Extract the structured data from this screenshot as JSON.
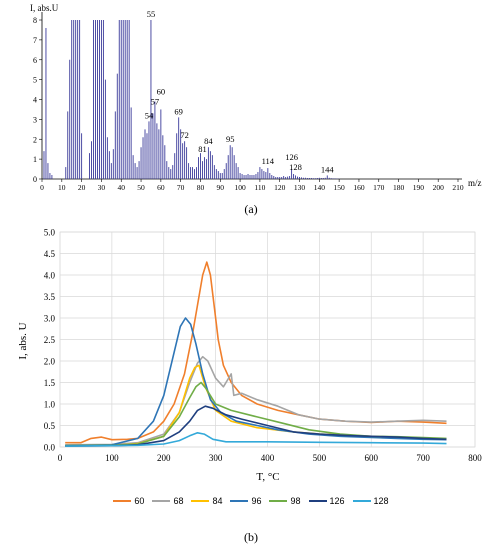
{
  "chart_data": [
    {
      "id": "a",
      "type": "bar",
      "caption": "(a)",
      "ylabel": "I, abs.U",
      "xlabel": "m/z",
      "ylim": [
        0,
        8
      ],
      "xlim": [
        0,
        210
      ],
      "yticks": [
        0,
        1,
        2,
        3,
        4,
        5,
        6,
        7,
        8
      ],
      "xticks": [
        0,
        10,
        20,
        30,
        40,
        50,
        60,
        70,
        80,
        90,
        100,
        110,
        120,
        130,
        140,
        150,
        160,
        170,
        180,
        190,
        200,
        210
      ],
      "color": "#3a3a9a",
      "x": [
        1,
        2,
        3,
        4,
        5,
        12,
        13,
        14,
        15,
        16,
        17,
        18,
        19,
        20,
        24,
        25,
        26,
        27,
        28,
        29,
        30,
        31,
        32,
        33,
        34,
        35,
        36,
        37,
        38,
        39,
        40,
        41,
        42,
        43,
        44,
        45,
        46,
        47,
        48,
        49,
        50,
        51,
        52,
        53,
        54,
        55,
        56,
        57,
        58,
        59,
        60,
        61,
        62,
        63,
        64,
        65,
        66,
        67,
        68,
        69,
        70,
        71,
        72,
        73,
        74,
        75,
        76,
        77,
        78,
        79,
        80,
        81,
        82,
        83,
        84,
        85,
        86,
        87,
        88,
        89,
        90,
        91,
        92,
        93,
        94,
        95,
        96,
        97,
        98,
        99,
        100,
        101,
        102,
        103,
        104,
        105,
        106,
        107,
        108,
        109,
        110,
        111,
        112,
        113,
        114,
        115,
        116,
        117,
        118,
        119,
        120,
        121,
        122,
        123,
        124,
        125,
        126,
        127,
        128,
        129,
        130,
        131,
        132,
        133,
        134,
        135,
        136,
        137,
        138,
        139,
        140,
        141,
        142,
        143,
        144,
        145,
        146,
        147,
        148,
        149,
        150
      ],
      "values": [
        1.4,
        7.6,
        0.8,
        0.3,
        0.2,
        0.6,
        3.4,
        6.0,
        8.0,
        8.0,
        8.0,
        8.0,
        8.0,
        2.3,
        1.3,
        1.9,
        8.0,
        8.0,
        8.0,
        8.0,
        8.0,
        8.0,
        5.0,
        2.1,
        1.4,
        0.8,
        1.5,
        3.4,
        5.3,
        8.0,
        8.0,
        8.0,
        8.0,
        8.0,
        8.0,
        3.6,
        1.2,
        0.8,
        0.6,
        0.9,
        1.6,
        2.1,
        2.5,
        2.3,
        2.9,
        8.0,
        3.3,
        3.9,
        2.8,
        2.5,
        3.5,
        2.2,
        1.7,
        0.9,
        0.6,
        0.5,
        0.7,
        1.3,
        2.3,
        3.1,
        2.5,
        1.8,
        1.9,
        1.6,
        0.8,
        0.6,
        0.6,
        0.5,
        0.6,
        1.1,
        1.3,
        0.9,
        1.1,
        1.0,
        1.6,
        1.4,
        1.2,
        0.7,
        0.5,
        0.4,
        0.3,
        0.3,
        0.5,
        0.8,
        1.2,
        1.7,
        1.6,
        1.2,
        0.8,
        0.6,
        0.3,
        0.25,
        0.2,
        0.2,
        0.25,
        0.2,
        0.2,
        0.2,
        0.25,
        0.35,
        0.6,
        0.5,
        0.4,
        0.35,
        0.55,
        0.3,
        0.2,
        0.15,
        0.1,
        0.1,
        0.1,
        0.1,
        0.15,
        0.1,
        0.12,
        0.15,
        0.5,
        0.25,
        0.18,
        0.12,
        0.1,
        0.08,
        0.06,
        0.06,
        0.05,
        0.05,
        0.05,
        0.04,
        0.04,
        0.05,
        0.06,
        0.05,
        0.05,
        0.06,
        0.18,
        0.06,
        0.04,
        0.03,
        0.03,
        0.02,
        0.02
      ],
      "annotations": [
        {
          "x": 55,
          "y": 8.0,
          "text": "55"
        },
        {
          "x": 54,
          "y": 2.9,
          "text": "54"
        },
        {
          "x": 57,
          "y": 3.6,
          "text": "57"
        },
        {
          "x": 60,
          "y": 4.1,
          "text": "60"
        },
        {
          "x": 69,
          "y": 3.1,
          "text": "69"
        },
        {
          "x": 72,
          "y": 1.9,
          "text": "72"
        },
        {
          "x": 81,
          "y": 1.2,
          "text": "81"
        },
        {
          "x": 84,
          "y": 1.6,
          "text": "84"
        },
        {
          "x": 95,
          "y": 1.7,
          "text": "95"
        },
        {
          "x": 114,
          "y": 0.6,
          "text": "114"
        },
        {
          "x": 126,
          "y": 0.8,
          "text": "126"
        },
        {
          "x": 128,
          "y": 0.3,
          "text": "128"
        },
        {
          "x": 144,
          "y": 0.18,
          "text": "144"
        }
      ]
    },
    {
      "id": "b",
      "type": "line",
      "caption": "(b)",
      "xlabel": "T, °C",
      "ylabel": "I, abs. U",
      "xlim": [
        0,
        800
      ],
      "ylim": [
        0,
        5
      ],
      "xticks": [
        0,
        100,
        200,
        300,
        400,
        500,
        600,
        700,
        800
      ],
      "yticks": [
        "0.0",
        "0.5",
        "1.0",
        "1.5",
        "2.0",
        "2.5",
        "3.0",
        "3.5",
        "4.0",
        "4.5",
        "5.0"
      ],
      "grid": true,
      "legend_position": "bottom",
      "series": [
        {
          "name": "60",
          "color": "#f07f2c",
          "points": [
            [
              10,
              0.1
            ],
            [
              40,
              0.1
            ],
            [
              60,
              0.2
            ],
            [
              80,
              0.23
            ],
            [
              100,
              0.17
            ],
            [
              130,
              0.18
            ],
            [
              150,
              0.2
            ],
            [
              180,
              0.35
            ],
            [
              200,
              0.6
            ],
            [
              220,
              1.0
            ],
            [
              240,
              1.7
            ],
            [
              255,
              2.6
            ],
            [
              265,
              3.3
            ],
            [
              275,
              4.0
            ],
            [
              283,
              4.3
            ],
            [
              290,
              4.0
            ],
            [
              298,
              3.2
            ],
            [
              305,
              2.5
            ],
            [
              315,
              1.9
            ],
            [
              330,
              1.5
            ],
            [
              350,
              1.2
            ],
            [
              380,
              1.0
            ],
            [
              420,
              0.85
            ],
            [
              460,
              0.75
            ],
            [
              500,
              0.65
            ],
            [
              550,
              0.6
            ],
            [
              600,
              0.57
            ],
            [
              650,
              0.6
            ],
            [
              700,
              0.58
            ],
            [
              745,
              0.55
            ]
          ]
        },
        {
          "name": "68",
          "color": "#a5a5a5",
          "points": [
            [
              10,
              0.05
            ],
            [
              100,
              0.06
            ],
            [
              150,
              0.1
            ],
            [
              200,
              0.3
            ],
            [
              230,
              0.8
            ],
            [
              250,
              1.5
            ],
            [
              265,
              1.95
            ],
            [
              275,
              2.1
            ],
            [
              285,
              2.0
            ],
            [
              300,
              1.6
            ],
            [
              315,
              1.4
            ],
            [
              330,
              1.7
            ],
            [
              335,
              1.2
            ],
            [
              350,
              1.25
            ],
            [
              380,
              1.1
            ],
            [
              420,
              0.95
            ],
            [
              460,
              0.75
            ],
            [
              500,
              0.65
            ],
            [
              550,
              0.6
            ],
            [
              600,
              0.58
            ],
            [
              650,
              0.6
            ],
            [
              700,
              0.62
            ],
            [
              745,
              0.6
            ]
          ]
        },
        {
          "name": "84",
          "color": "#ffc000",
          "points": [
            [
              10,
              0.03
            ],
            [
              100,
              0.04
            ],
            [
              150,
              0.08
            ],
            [
              200,
              0.25
            ],
            [
              230,
              0.8
            ],
            [
              250,
              1.6
            ],
            [
              260,
              1.85
            ],
            [
              268,
              1.9
            ],
            [
              280,
              1.4
            ],
            [
              300,
              0.85
            ],
            [
              330,
              0.6
            ],
            [
              380,
              0.45
            ],
            [
              450,
              0.35
            ],
            [
              500,
              0.3
            ],
            [
              550,
              0.28
            ],
            [
              600,
              0.25
            ],
            [
              650,
              0.22
            ],
            [
              700,
              0.2
            ],
            [
              745,
              0.18
            ]
          ]
        },
        {
          "name": "96",
          "color": "#2e75b6",
          "points": [
            [
              10,
              0.03
            ],
            [
              100,
              0.05
            ],
            [
              150,
              0.2
            ],
            [
              180,
              0.6
            ],
            [
              200,
              1.2
            ],
            [
              220,
              2.2
            ],
            [
              232,
              2.8
            ],
            [
              242,
              3.0
            ],
            [
              252,
              2.85
            ],
            [
              262,
              2.4
            ],
            [
              275,
              1.7
            ],
            [
              290,
              1.1
            ],
            [
              310,
              0.8
            ],
            [
              340,
              0.6
            ],
            [
              380,
              0.5
            ],
            [
              420,
              0.4
            ],
            [
              480,
              0.3
            ],
            [
              540,
              0.25
            ],
            [
              600,
              0.22
            ],
            [
              650,
              0.2
            ],
            [
              700,
              0.18
            ],
            [
              745,
              0.17
            ]
          ]
        },
        {
          "name": "98",
          "color": "#70ad47",
          "points": [
            [
              10,
              0.03
            ],
            [
              100,
              0.04
            ],
            [
              150,
              0.07
            ],
            [
              200,
              0.25
            ],
            [
              230,
              0.7
            ],
            [
              250,
              1.15
            ],
            [
              262,
              1.4
            ],
            [
              272,
              1.5
            ],
            [
              282,
              1.35
            ],
            [
              300,
              1.0
            ],
            [
              330,
              0.85
            ],
            [
              380,
              0.7
            ],
            [
              430,
              0.55
            ],
            [
              480,
              0.4
            ],
            [
              540,
              0.3
            ],
            [
              600,
              0.25
            ],
            [
              650,
              0.24
            ],
            [
              700,
              0.22
            ],
            [
              745,
              0.2
            ]
          ]
        },
        {
          "name": "126",
          "color": "#1f3f7f",
          "points": [
            [
              10,
              0.02
            ],
            [
              100,
              0.03
            ],
            [
              150,
              0.05
            ],
            [
              200,
              0.15
            ],
            [
              230,
              0.35
            ],
            [
              250,
              0.6
            ],
            [
              265,
              0.85
            ],
            [
              280,
              0.95
            ],
            [
              295,
              0.9
            ],
            [
              320,
              0.75
            ],
            [
              350,
              0.65
            ],
            [
              400,
              0.5
            ],
            [
              450,
              0.35
            ],
            [
              500,
              0.3
            ],
            [
              550,
              0.27
            ],
            [
              600,
              0.25
            ],
            [
              650,
              0.23
            ],
            [
              700,
              0.2
            ],
            [
              745,
              0.18
            ]
          ]
        },
        {
          "name": "128",
          "color": "#33a9d9",
          "points": [
            [
              10,
              0.02
            ],
            [
              100,
              0.03
            ],
            [
              150,
              0.04
            ],
            [
              200,
              0.07
            ],
            [
              230,
              0.15
            ],
            [
              250,
              0.26
            ],
            [
              265,
              0.33
            ],
            [
              278,
              0.3
            ],
            [
              295,
              0.18
            ],
            [
              320,
              0.12
            ],
            [
              400,
              0.12
            ],
            [
              500,
              0.11
            ],
            [
              600,
              0.1
            ],
            [
              700,
              0.09
            ],
            [
              745,
              0.08
            ]
          ]
        }
      ]
    }
  ]
}
